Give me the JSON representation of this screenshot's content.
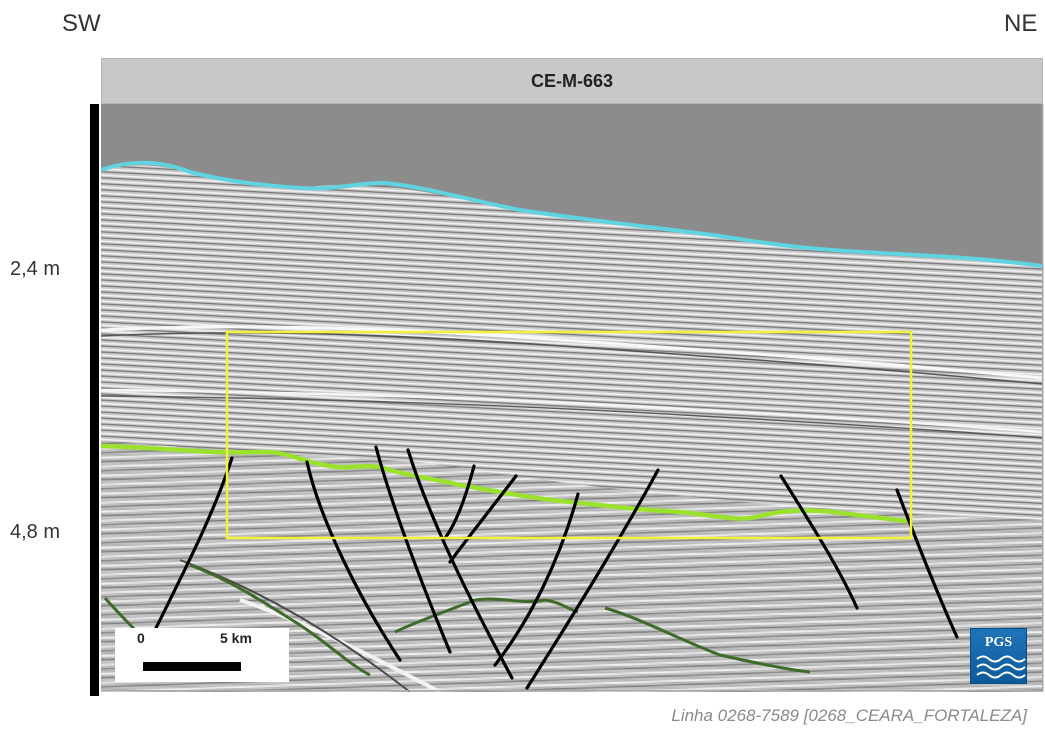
{
  "directions": {
    "left": "SW",
    "right": "NE"
  },
  "section_title": "CE-M-663",
  "depth_labels": {
    "upper": "2,4 m",
    "lower": "4,8 m"
  },
  "scale_bar": {
    "start_label": "0",
    "end_label": "5 km"
  },
  "logo_text": "PGS",
  "caption": "Linha 0268-7589 [0268_CEARA_FORTALEZA]",
  "colors": {
    "water": "#8c8c8c",
    "seafloor_horizon": "#5fd3e0",
    "key_horizon": "#9be22d",
    "deep_horizon": "#3f6b2a",
    "faults": "#000000",
    "highlight_box": "#f2f23a"
  }
}
